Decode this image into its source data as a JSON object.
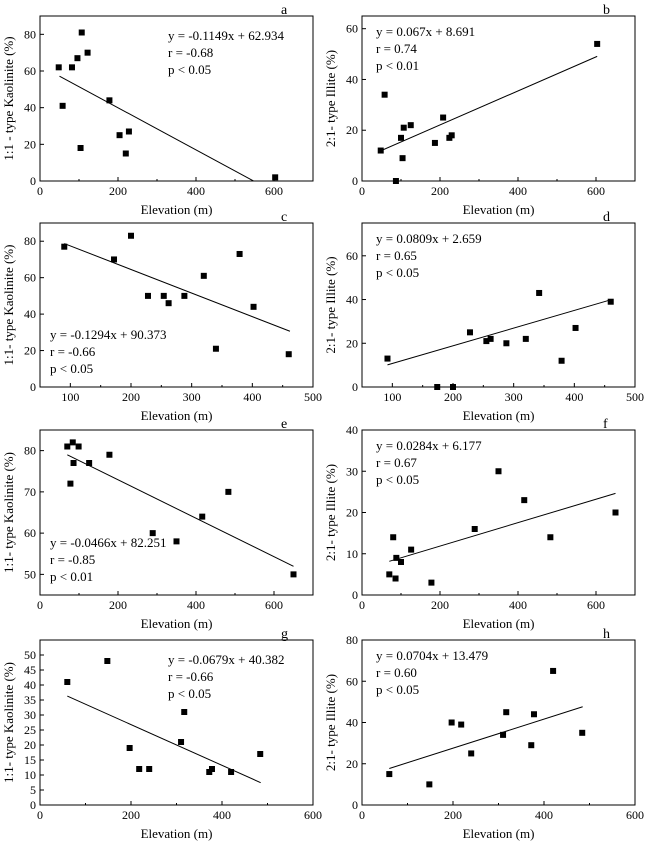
{
  "chart_data": [
    {
      "type": "scatter",
      "panel": "a",
      "xlabel": "Elevation (m)",
      "ylabel": "1:1 - type Kaolinite  (%)",
      "xlim": [
        0,
        700
      ],
      "ylim": [
        0,
        90
      ],
      "xticks": [
        0,
        200,
        400,
        600
      ],
      "yticks": [
        0,
        20,
        40,
        60,
        80
      ],
      "xtick_labels": [
        "0",
        "200",
        "400",
        "600"
      ],
      "ytick_labels": [
        "0",
        "20",
        "40",
        "60",
        "80"
      ],
      "ann_pos": "top-right",
      "annotations": [
        "y = -0.1149x + 62.934",
        "r = -0.68",
        "p < 0.05"
      ],
      "fit": {
        "slope": -0.1149,
        "intercept": 62.934,
        "x_range": [
          50,
          548
        ]
      },
      "x": [
        48,
        58,
        82,
        96,
        104,
        107,
        122,
        178,
        204,
        220,
        228,
        603
      ],
      "y": [
        62,
        41,
        62,
        67,
        18,
        81,
        70,
        44,
        25,
        15,
        27,
        2
      ]
    },
    {
      "type": "scatter",
      "panel": "b",
      "xlabel": "Elevation (m)",
      "ylabel": "2:1- type Illite  (%)",
      "xlim": [
        0,
        700
      ],
      "ylim": [
        0,
        65
      ],
      "xticks": [
        0,
        200,
        400,
        600
      ],
      "yticks": [
        0,
        20,
        40,
        60
      ],
      "xtick_labels": [
        "0",
        "200",
        "400",
        "600"
      ],
      "ytick_labels": [
        "0",
        "20",
        "40",
        "60"
      ],
      "ann_pos": "top-left",
      "annotations": [
        "y = 0.067x + 8.691",
        "r = 0.74",
        "p < 0.01"
      ],
      "fit": {
        "slope": 0.067,
        "intercept": 8.691,
        "x_range": [
          48,
          603
        ]
      },
      "x": [
        48,
        58,
        87,
        100,
        104,
        107,
        125,
        187,
        208,
        224,
        230,
        603
      ],
      "y": [
        12,
        34,
        0,
        17,
        9,
        21,
        22,
        15,
        25,
        17,
        18,
        54
      ]
    },
    {
      "type": "scatter",
      "panel": "c",
      "xlabel": "Elevation (m)",
      "ylabel": "1:1- type Kaolinite  (%)",
      "xlim": [
        50,
        500
      ],
      "ylim": [
        0,
        90
      ],
      "xticks": [
        100,
        200,
        300,
        400,
        500
      ],
      "yticks": [
        0,
        20,
        40,
        60,
        80
      ],
      "xtick_labels": [
        "100",
        "200",
        "300",
        "400",
        "500"
      ],
      "ytick_labels": [
        "0",
        "20",
        "40",
        "60",
        "80"
      ],
      "ann_pos": "bottom-left",
      "annotations": [
        "y = -0.1294x + 90.373",
        "r = -0.66",
        "p < 0.05"
      ],
      "fit": {
        "slope": -0.1294,
        "intercept": 90.373,
        "x_range": [
          90,
          462
        ]
      },
      "x": [
        90,
        172,
        200,
        228,
        254,
        262,
        288,
        320,
        340,
        379,
        402,
        460
      ],
      "y": [
        77,
        70,
        83,
        50,
        50,
        46,
        50,
        61,
        21,
        73,
        44,
        18
      ]
    },
    {
      "type": "scatter",
      "panel": "d",
      "xlabel": "Elevation (m)",
      "ylabel": "2:1- type Illite  (%)",
      "xlim": [
        50,
        500
      ],
      "ylim": [
        0,
        75
      ],
      "xticks": [
        100,
        200,
        300,
        400,
        500
      ],
      "yticks": [
        0,
        20,
        40,
        60
      ],
      "xtick_labels": [
        "100",
        "200",
        "300",
        "400",
        "500"
      ],
      "ytick_labels": [
        "0",
        "20",
        "40",
        "60"
      ],
      "ann_pos": "top-left",
      "annotations": [
        "y = 0.0809x + 2.659",
        "r = 0.65",
        "p < 0.05"
      ],
      "fit": {
        "slope": 0.0809,
        "intercept": 2.659,
        "x_range": [
          92,
          460
        ]
      },
      "x": [
        92,
        174,
        200,
        228,
        255,
        262,
        288,
        320,
        342,
        379,
        402,
        460
      ],
      "y": [
        13,
        0,
        0,
        25,
        21,
        22,
        20,
        22,
        43,
        12,
        27,
        39
      ]
    },
    {
      "type": "scatter",
      "panel": "e",
      "xlabel": "Elevation (m)",
      "ylabel": "1:1- type Kaolinite  (%)",
      "xlim": [
        0,
        700
      ],
      "ylim": [
        45,
        85
      ],
      "xticks": [
        0,
        200,
        400,
        600
      ],
      "yticks": [
        50,
        60,
        70,
        80
      ],
      "xtick_labels": [
        "0",
        "200",
        "400",
        "600"
      ],
      "ytick_labels": [
        "50",
        "60",
        "70",
        "80"
      ],
      "ann_pos": "bottom-left",
      "annotations": [
        "y = -0.0466x + 82.251",
        "r = -0.85",
        "p < 0.01"
      ],
      "fit": {
        "slope": -0.0466,
        "intercept": 82.251,
        "x_range": [
          70,
          650
        ]
      },
      "x": [
        70,
        78,
        84,
        86,
        99,
        126,
        178,
        289,
        350,
        416,
        483,
        650
      ],
      "y": [
        81,
        72,
        82,
        77,
        81,
        77,
        79,
        60,
        58,
        64,
        70,
        50
      ]
    },
    {
      "type": "scatter",
      "panel": "f",
      "xlabel": "Elevation (m)",
      "ylabel": "2:1- type Illite  (%)",
      "xlim": [
        0,
        700
      ],
      "ylim": [
        0,
        40
      ],
      "xticks": [
        0,
        200,
        400,
        600
      ],
      "yticks": [
        0,
        10,
        20,
        30,
        40
      ],
      "xtick_labels": [
        "0",
        "200",
        "400",
        "600"
      ],
      "ytick_labels": [
        "0",
        "10",
        "20",
        "30",
        "40"
      ],
      "ann_pos": "top-left",
      "annotations": [
        "y = 0.0284x + 6.177",
        "r = 0.67",
        "p <  0.05"
      ],
      "fit": {
        "slope": 0.0284,
        "intercept": 6.177,
        "x_range": [
          70,
          650
        ]
      },
      "x": [
        70,
        80,
        86,
        88,
        100,
        126,
        178,
        289,
        350,
        416,
        483,
        650
      ],
      "y": [
        5,
        14,
        4,
        9,
        8,
        11,
        3,
        16,
        30,
        23,
        14,
        20
      ]
    },
    {
      "type": "scatter",
      "panel": "g",
      "xlabel": "Elevation (m)",
      "ylabel": "1:1- type Kaolinite  (%)",
      "xlim": [
        0,
        600
      ],
      "ylim": [
        0,
        55
      ],
      "xticks": [
        0,
        200,
        400,
        600
      ],
      "yticks": [
        0,
        5,
        10,
        15,
        20,
        25,
        30,
        35,
        40,
        45,
        50
      ],
      "xtick_labels": [
        "0",
        "200",
        "400",
        "600"
      ],
      "ytick_labels": [
        "0",
        "5",
        "10",
        "15",
        "20",
        "25",
        "30",
        "35",
        "40",
        "45",
        "50"
      ],
      "ann_pos": "top-right",
      "annotations": [
        "y = -0.0679x + 40.382",
        "r = -0.66",
        "p < 0.05"
      ],
      "fit": {
        "slope": -0.0679,
        "intercept": 40.382,
        "x_range": [
          60,
          485
        ]
      },
      "x": [
        60,
        148,
        197,
        218,
        240,
        310,
        317,
        372,
        378,
        420,
        484
      ],
      "y": [
        41,
        48,
        19,
        12,
        12,
        21,
        31,
        11,
        12,
        11,
        17
      ]
    },
    {
      "type": "scatter",
      "panel": "h",
      "xlabel": "Elevation (m)",
      "ylabel": "2:1- type Illite  (%)",
      "xlim": [
        0,
        600
      ],
      "ylim": [
        0,
        80
      ],
      "xticks": [
        0,
        200,
        400,
        600
      ],
      "yticks": [
        0,
        20,
        40,
        60,
        80
      ],
      "xtick_labels": [
        "0",
        "200",
        "400",
        "600"
      ],
      "ytick_labels": [
        "0",
        "20",
        "40",
        "60",
        "80"
      ],
      "ann_pos": "top-left",
      "annotations": [
        "y = 0.0704x + 13.479",
        "r = 0.60",
        "p < 0.05"
      ],
      "fit": {
        "slope": 0.0704,
        "intercept": 13.479,
        "x_range": [
          60,
          485
        ]
      },
      "x": [
        60,
        148,
        197,
        218,
        240,
        310,
        317,
        372,
        378,
        420,
        484
      ],
      "y": [
        15,
        10,
        40,
        39,
        25,
        34,
        45,
        29,
        44,
        65,
        35
      ]
    }
  ]
}
